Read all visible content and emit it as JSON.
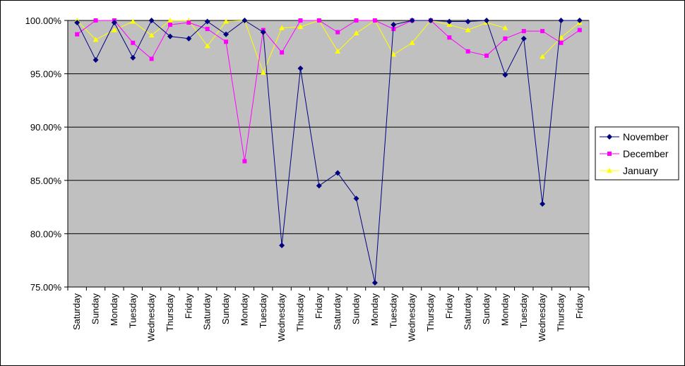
{
  "chart_data": {
    "type": "line",
    "categories": [
      "Saturday",
      "Sunday",
      "Monday",
      "Tuesday",
      "Wednesday",
      "Thursday",
      "Friday",
      "Saturday",
      "Sunday",
      "Monday",
      "Tuesday",
      "Wednesday",
      "Thursday",
      "Friday",
      "Saturday",
      "Sunday",
      "Monday",
      "Tuesday",
      "Wednesday",
      "Thursday",
      "Friday",
      "Saturday",
      "Sunday",
      "Monday",
      "Tuesday",
      "Wednesday",
      "Thursday",
      "Friday"
    ],
    "y_tick_labels": [
      "75.00%",
      "80.00%",
      "85.00%",
      "90.00%",
      "95.00%",
      "100.00%"
    ],
    "y_ticks": [
      75,
      80,
      85,
      90,
      95,
      100
    ],
    "ylim": [
      75,
      100
    ],
    "grid": true,
    "legend_position": "right",
    "plot_background": "#c0c0c0",
    "series": [
      {
        "name": "November",
        "color": "#000080",
        "marker": "diamond",
        "values": [
          99.8,
          96.3,
          99.8,
          96.5,
          100.0,
          98.5,
          98.3,
          99.9,
          98.7,
          100.0,
          98.9,
          78.9,
          95.5,
          84.5,
          85.7,
          83.3,
          75.4,
          99.6,
          100.0,
          100.0,
          99.9,
          99.9,
          100.0,
          94.9,
          98.3,
          82.8,
          100.0,
          100.0
        ]
      },
      {
        "name": "December",
        "color": "#ff00ff",
        "marker": "square",
        "values": [
          98.7,
          100.0,
          100.0,
          97.9,
          96.4,
          99.6,
          99.8,
          99.2,
          98.0,
          86.8,
          99.1,
          97.0,
          100.0,
          100.0,
          98.9,
          100.0,
          100.0,
          99.2,
          100.0,
          100.0,
          98.4,
          97.1,
          96.7,
          98.3,
          99.0,
          99.0,
          97.9,
          99.1
        ]
      },
      {
        "name": "January",
        "color": "#ffff00",
        "marker": "triangle",
        "values": [
          100.0,
          98.2,
          99.1,
          99.9,
          98.6,
          100.0,
          100.0,
          97.6,
          99.9,
          100.0,
          95.1,
          99.3,
          99.4,
          100.0,
          97.1,
          98.8,
          100.0,
          96.8,
          97.9,
          100.0,
          99.6,
          99.1,
          99.8,
          99.3,
          null,
          96.6,
          98.4,
          99.8
        ]
      }
    ]
  }
}
